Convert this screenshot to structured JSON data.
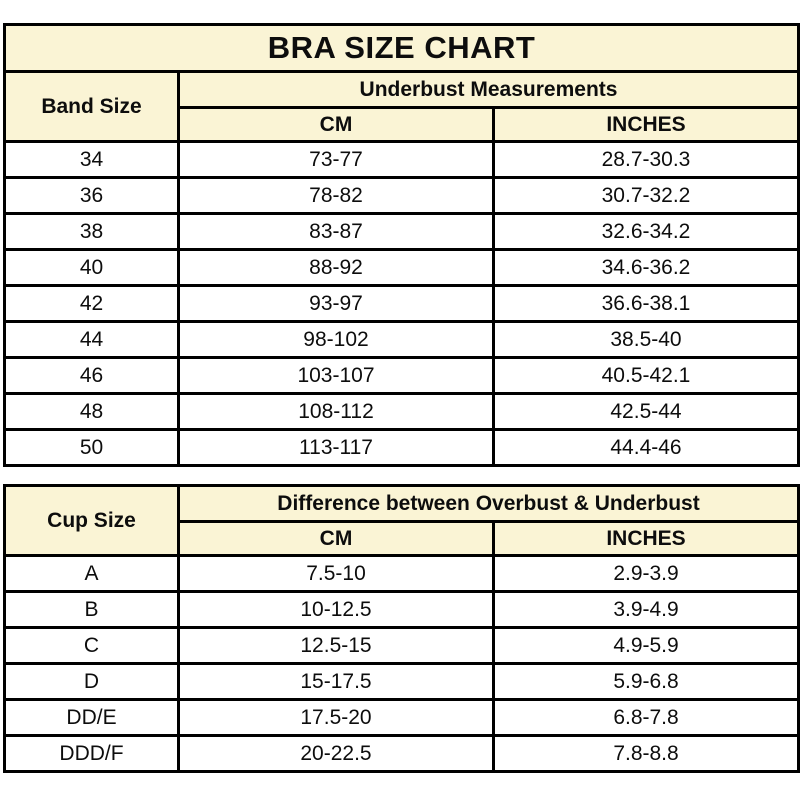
{
  "colors": {
    "header_bg": "#faf4d5",
    "border": "#000000",
    "text": "#0d0d0d",
    "row_bg": "#ffffff"
  },
  "chart_data": [
    {
      "type": "table",
      "title": "BRA SIZE CHART",
      "group_header": "Underbust Measurements",
      "columns": [
        "Band Size",
        "CM",
        "INCHES"
      ],
      "rows": [
        [
          "34",
          "73-77",
          "28.7-30.3"
        ],
        [
          "36",
          "78-82",
          "30.7-32.2"
        ],
        [
          "38",
          "83-87",
          "32.6-34.2"
        ],
        [
          "40",
          "88-92",
          "34.6-36.2"
        ],
        [
          "42",
          "93-97",
          "36.6-38.1"
        ],
        [
          "44",
          "98-102",
          "38.5-40"
        ],
        [
          "46",
          "103-107",
          "40.5-42.1"
        ],
        [
          "48",
          "108-112",
          "42.5-44"
        ],
        [
          "50",
          "113-117",
          "44.4-46"
        ]
      ]
    },
    {
      "type": "table",
      "group_header": "Difference between Overbust & Underbust",
      "columns": [
        "Cup Size",
        "CM",
        "INCHES"
      ],
      "rows": [
        [
          "A",
          "7.5-10",
          "2.9-3.9"
        ],
        [
          "B",
          "10-12.5",
          "3.9-4.9"
        ],
        [
          "C",
          "12.5-15",
          "4.9-5.9"
        ],
        [
          "D",
          "15-17.5",
          "5.9-6.8"
        ],
        [
          "DD/E",
          "17.5-20",
          "6.8-7.8"
        ],
        [
          "DDD/F",
          "20-22.5",
          "7.8-8.8"
        ]
      ]
    }
  ]
}
